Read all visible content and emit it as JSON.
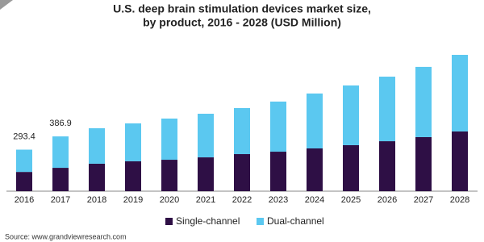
{
  "chart_data": {
    "type": "stacked_bar",
    "title": "U.S. deep brain stimulation devices market size,",
    "subtitle": "by product, 2016 - 2028 (USD Million)",
    "categories": [
      "2016",
      "2017",
      "2018",
      "2019",
      "2020",
      "2021",
      "2022",
      "2023",
      "2024",
      "2025",
      "2026",
      "2027",
      "2028"
    ],
    "series": [
      {
        "name": "Single-channel",
        "color": "#2e0f45",
        "values": [
          136,
          165,
          194,
          211,
          222,
          239,
          262,
          279,
          302,
          325,
          353,
          382,
          422
        ]
      },
      {
        "name": "Dual-channel",
        "color": "#5bc8f0",
        "values": [
          157.4,
          221.9,
          251,
          268,
          291,
          308,
          325,
          354,
          388,
          422,
          456,
          496,
          541
        ]
      }
    ],
    "annotations": [
      {
        "category": "2016",
        "value": 293.4
      },
      {
        "category": "2017",
        "value": 386.9
      }
    ],
    "legend": "bottom",
    "source": "Source: www.grandviewresearch.com"
  }
}
